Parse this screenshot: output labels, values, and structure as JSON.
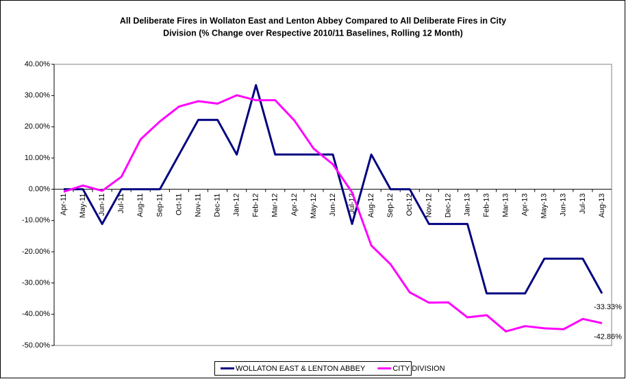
{
  "chart_data": {
    "type": "line",
    "title": [
      "All Deliberate Fires in Wollaton East and Lenton Abbey Compared to All Deliberate Fires in City",
      "Division  (% Change over Respective 2010/11 Baselines, Rolling 12 Month)"
    ],
    "categories": [
      "Apr-11",
      "May-11",
      "Jun-11",
      "Jul-11",
      "Aug-11",
      "Sep-11",
      "Oct-11",
      "Nov-11",
      "Dec-11",
      "Jan-12",
      "Feb-12",
      "Mar-12",
      "Apr-12",
      "May-12",
      "Jun-12",
      "Jul-12",
      "Aug-12",
      "Sep-12",
      "Oct-12",
      "Nov-12",
      "Dec-12",
      "Jan-13",
      "Feb-13",
      "Mar-13",
      "Apr-13",
      "May-13",
      "Jun-13",
      "Jul-13",
      "Aug-13"
    ],
    "series": [
      {
        "name": "WOLLATON EAST & LENTON ABBEY",
        "color": "#000080",
        "values": [
          0,
          0,
          -11.11,
          0,
          0,
          0,
          11.11,
          22.22,
          22.22,
          11.11,
          33.33,
          11.11,
          11.11,
          11.11,
          11.11,
          -11.11,
          11.11,
          0,
          0,
          -11.11,
          -11.11,
          -11.11,
          -33.33,
          -33.33,
          -33.33,
          -22.22,
          -22.22,
          -22.22,
          -33.33
        ],
        "value_labels": [
          null,
          null,
          null,
          null,
          null,
          null,
          null,
          null,
          null,
          null,
          null,
          null,
          null,
          null,
          null,
          null,
          null,
          null,
          null,
          null,
          null,
          null,
          null,
          null,
          null,
          null,
          null,
          null,
          "-33.33%"
        ]
      },
      {
        "name": "CITY DIVISION",
        "color": "#ff00ff",
        "values": [
          -0.8,
          1.2,
          -0.5,
          4,
          16,
          21.7,
          26.5,
          28.2,
          27.4,
          30.1,
          28.5,
          28.5,
          22,
          13,
          8,
          -1,
          -18,
          -24,
          -33,
          -36.3,
          -36.2,
          -41,
          -40.3,
          -45.5,
          -43.8,
          -44.5,
          -44.8,
          -41.5,
          -42.86
        ],
        "value_labels": [
          null,
          null,
          null,
          null,
          null,
          null,
          null,
          null,
          null,
          null,
          null,
          null,
          null,
          null,
          null,
          null,
          null,
          null,
          null,
          null,
          null,
          null,
          null,
          null,
          null,
          null,
          null,
          null,
          "-42.86%"
        ]
      }
    ],
    "ylim": [
      -50,
      40
    ],
    "yticks": [
      {
        "value": -50,
        "label": "-50.00%"
      },
      {
        "value": -40,
        "label": "-40.00%"
      },
      {
        "value": -30,
        "label": "-30.00%"
      },
      {
        "value": -20,
        "label": "-20.00%"
      },
      {
        "value": -10,
        "label": "-10.00%"
      },
      {
        "value": 0,
        "label": "0.00%"
      },
      {
        "value": 10,
        "label": "10.00%"
      },
      {
        "value": 20,
        "label": "20.00%"
      },
      {
        "value": 30,
        "label": "30.00%"
      },
      {
        "value": 40,
        "label": "40.00%"
      }
    ],
    "grid": false,
    "legend": "bottom"
  }
}
